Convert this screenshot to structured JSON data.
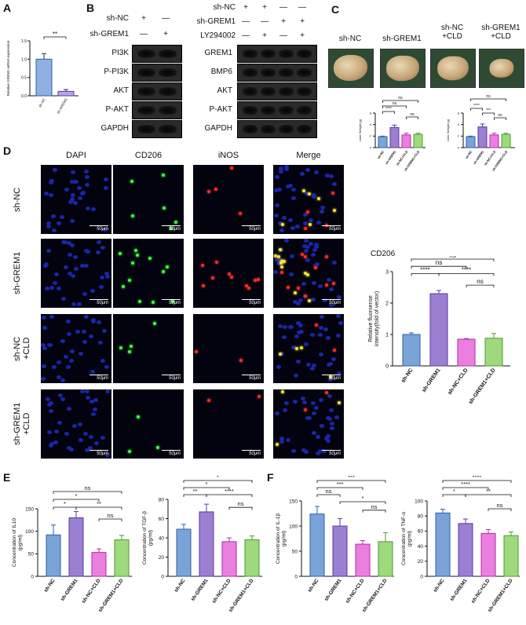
{
  "panels": {
    "a": "A",
    "b": "B",
    "c": "C",
    "d": "D",
    "e": "E",
    "f": "F"
  },
  "panelA": {
    "ylabel": "Relative GREM1 mRNA expression",
    "sig": "**",
    "categories": [
      "sh-NC",
      "sh-GREM1"
    ],
    "values": [
      1.0,
      0.12
    ],
    "errors": [
      0.15,
      0.05
    ],
    "yticks": [
      "0.0",
      "0.5",
      "1.0",
      "1.5"
    ]
  },
  "panelB": {
    "left": {
      "conditions": [
        "sh-NC",
        "sh-GREM1"
      ],
      "signs": [
        [
          "+",
          "—"
        ],
        [
          "—",
          "+"
        ]
      ],
      "rows": [
        "PI3K",
        "P-PI3K",
        "AKT",
        "P-AKT",
        "GAPDH"
      ]
    },
    "right": {
      "conditions": [
        "sh-NC",
        "sh-GREM1",
        "LY294002"
      ],
      "signs": [
        [
          "+",
          "+",
          "—",
          "—"
        ],
        [
          "—",
          "—",
          "+",
          "+"
        ],
        [
          "—",
          "+",
          "—",
          "+"
        ]
      ],
      "rows": [
        "GREM1",
        "BMP6",
        "AKT",
        "P-AKT",
        "GAPDH"
      ]
    }
  },
  "panelC": {
    "photo_labels": [
      "sh-NC",
      "sh-GREM1",
      "sh-NC\n+CLD",
      "sh-GREM1\n+CLD"
    ]
  },
  "panelD": {
    "columns": [
      "DAPI",
      "CD206",
      "iNOS",
      "Merge"
    ],
    "rows": [
      "sh-NC",
      "sh-GREM1",
      "sh-NC\n+CLD",
      "sh-GREM1\n+CLD"
    ],
    "scale_label": "50μm",
    "chart_title": "CD206"
  },
  "chart_data": [
    {
      "id": "c-left",
      "type": "bar",
      "categories": [
        "sh-NC",
        "sh-GREM1",
        "sh-NC+CLD",
        "sh-GREM1+CLD"
      ],
      "values": [
        1.9,
        3.5,
        2.2,
        2.3
      ],
      "errors": [
        0.1,
        0.4,
        0.3,
        0.2
      ],
      "ylabel": "Liver Weight (g)",
      "ylim": [
        0,
        6
      ],
      "yticks": [
        0,
        2,
        4,
        6
      ],
      "sig": [
        "ns",
        "ns",
        "****",
        "ns"
      ]
    },
    {
      "id": "c-right",
      "type": "bar",
      "categories": [
        "sh-NC",
        "sh-GREM1",
        "sh-NC+CLD",
        "sh-GREM1+CLD"
      ],
      "values": [
        1.9,
        3.6,
        2.2,
        2.3
      ],
      "errors": [
        0.1,
        0.5,
        0.3,
        0.2
      ],
      "ylabel": "Liver Weight (g)",
      "ylim": [
        0,
        6
      ],
      "yticks": [
        0,
        2,
        4,
        6
      ],
      "sig": [
        "ns",
        "****",
        "***",
        "ns"
      ]
    },
    {
      "id": "d-cd206",
      "type": "bar",
      "title": "CD206",
      "categories": [
        "sh-NC",
        "sh-GREM1",
        "sh-NC+CLD",
        "sh-GREM1+CLD"
      ],
      "values": [
        1.0,
        2.3,
        0.85,
        0.88
      ],
      "errors": [
        0.05,
        0.1,
        0.02,
        0.15
      ],
      "ylabel": "Relative fluorsense intensity(fold of vector)",
      "ylim": [
        0,
        3
      ],
      "yticks": [
        0,
        1,
        2,
        3
      ],
      "sig": [
        "ns",
        "ns",
        "****",
        "****",
        "ns"
      ]
    },
    {
      "id": "e-il10",
      "type": "bar",
      "categories": [
        "sh-NC",
        "sh-GREM1",
        "sh-NC+CLD",
        "sh-GREM1+CLD"
      ],
      "values": [
        92,
        130,
        53,
        81
      ],
      "errors": [
        22,
        14,
        8,
        10
      ],
      "ylabel": "Concentration of IL10 (pg/ml)",
      "ylim": [
        0,
        150
      ],
      "yticks": [
        0,
        50,
        100,
        150
      ],
      "sig": [
        "ns",
        "*",
        "*",
        "**",
        "ns"
      ]
    },
    {
      "id": "e-tgf",
      "type": "bar",
      "categories": [
        "sh-NC",
        "sh-GREM1",
        "sh-NC+CLD",
        "sh-GREM1+CLD"
      ],
      "values": [
        49,
        67,
        36,
        38
      ],
      "errors": [
        5,
        8,
        4,
        4
      ],
      "ylabel": "Concentration of TGF-β (pg/ml)",
      "ylim": [
        0,
        80
      ],
      "yticks": [
        0,
        20,
        40,
        60,
        80
      ],
      "sig": [
        "*",
        "*",
        "**",
        "****",
        "ns"
      ]
    },
    {
      "id": "f-il1b",
      "type": "bar",
      "categories": [
        "sh-NC",
        "sh-GREM1",
        "sh-NC+CLD",
        "sh-GREM1+CLD"
      ],
      "values": [
        124,
        100,
        64,
        69
      ],
      "errors": [
        15,
        15,
        7,
        18
      ],
      "ylabel": "Concentration of IL-1β (pg/ml)",
      "ylim": [
        0,
        150
      ],
      "yticks": [
        0,
        50,
        100,
        150
      ],
      "sig": [
        "***",
        "***",
        "ns",
        "*",
        "ns"
      ]
    },
    {
      "id": "f-tnf",
      "type": "bar",
      "categories": [
        "sh-NC",
        "sh-GREM1",
        "sh-NC+CLD",
        "sh-GREM1+CLD"
      ],
      "values": [
        84,
        70,
        57,
        54
      ],
      "errors": [
        5,
        6,
        5,
        5
      ],
      "ylabel": "Concentration of TNF-α (pg/ml)",
      "ylim": [
        0,
        100
      ],
      "yticks": [
        0,
        20,
        40,
        60,
        80,
        100
      ],
      "sig": [
        "****",
        "****",
        "*",
        "**",
        "ns"
      ]
    }
  ],
  "colors": {
    "bar1": "#7aa3d8",
    "bar2": "#9b7fd1",
    "bar3": "#ea7fe0",
    "bar4": "#9ed97e",
    "edge1": "#2e5fa8",
    "edge2": "#5a3aa0",
    "edge3": "#b52aa8",
    "edge4": "#4c9a30"
  }
}
